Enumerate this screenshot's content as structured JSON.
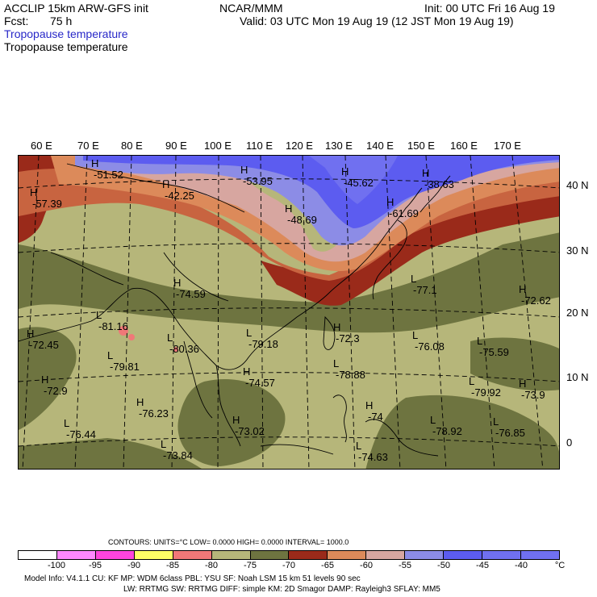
{
  "header": {
    "model": "ACCLIP 15km ARW-GFS init",
    "org": "NCAR/MMM",
    "init": "Init: 00 UTC Fri 16 Aug 19",
    "fcst_label": "Fcst:",
    "fcst_value": "75 h",
    "valid": "Valid: 03 UTC Mon 19 Aug 19 (12 JST Mon 19 Aug 19)",
    "field_colored": "Tropopause temperature",
    "field_black": "Tropopause temperature"
  },
  "map": {
    "lon_labels": [
      "60 E",
      "70 E",
      "80 E",
      "90 E",
      "100 E",
      "110 E",
      "120 E",
      "130 E",
      "140 E",
      "150 E",
      "160 E",
      "170 E"
    ],
    "lat_labels": [
      "40 N",
      "30 N",
      "20 N",
      "10 N",
      "0"
    ],
    "colors": {
      "c_gt40": "#7070f0",
      "c_m40_45": "#5c5cf0",
      "c_m45_50": "#8c8ce6",
      "c_m50_55": "#d7a6a0",
      "c_m55_60": "#dc8a5a",
      "c_m60_65": "#c86440",
      "c_m65_70": "#9a2a1a",
      "c_m70_75": "#6e7440",
      "c_m75_80": "#b6b67a",
      "c_m80_85": "#f07878",
      "c_m85_90": "#ffff66"
    },
    "features": [
      {
        "kind": "H",
        "value": "-51.52"
      },
      {
        "kind": "H",
        "value": "-53.95"
      },
      {
        "kind": "H",
        "value": "-42.25"
      },
      {
        "kind": "H",
        "value": "-45.62"
      },
      {
        "kind": "H",
        "value": "-38.63"
      },
      {
        "kind": "H",
        "value": "-57.39"
      },
      {
        "kind": "H",
        "value": "-48.69"
      },
      {
        "kind": "H",
        "value": "-61.69"
      },
      {
        "kind": "H",
        "value": "-74.59"
      },
      {
        "kind": "L",
        "value": "-81.16"
      },
      {
        "kind": "L",
        "value": "-77.1"
      },
      {
        "kind": "H",
        "value": "-72.62"
      },
      {
        "kind": "H",
        "value": "-72.45"
      },
      {
        "kind": "L",
        "value": "-80.36"
      },
      {
        "kind": "L",
        "value": "-79.18"
      },
      {
        "kind": "H",
        "value": "-72.3"
      },
      {
        "kind": "L",
        "value": "-76.08"
      },
      {
        "kind": "L",
        "value": "-75.59"
      },
      {
        "kind": "L",
        "value": "-79.81"
      },
      {
        "kind": "H",
        "value": "-74.57"
      },
      {
        "kind": "L",
        "value": "-78.88"
      },
      {
        "kind": "H",
        "value": "-72.9"
      },
      {
        "kind": "L",
        "value": "-79.92"
      },
      {
        "kind": "H",
        "value": "-73.9"
      },
      {
        "kind": "H",
        "value": "-76.23"
      },
      {
        "kind": "H",
        "value": "-74"
      },
      {
        "kind": "L",
        "value": "-76.44"
      },
      {
        "kind": "H",
        "value": "-73.02"
      },
      {
        "kind": "L",
        "value": "-78.92"
      },
      {
        "kind": "L",
        "value": "-76.85"
      },
      {
        "kind": "L",
        "value": "-73.84"
      },
      {
        "kind": "L",
        "value": "-74.63"
      }
    ]
  },
  "legend": {
    "contours": "CONTOURS:  UNITS=°C  LOW=  0.0000       HIGH=  0.0000       INTERVAL=   1000.0",
    "swatches": [
      "#ffffff",
      "#ff88ff",
      "#ff44dd",
      "#ffff66",
      "#f07878",
      "#b6b67a",
      "#6e7440",
      "#9a2a1a",
      "#dc8a5a",
      "#d7a6a0",
      "#8c8ce6",
      "#5c5cf0",
      "#7070f0",
      "#7070f0"
    ],
    "ticks": [
      "-100",
      "-95",
      "-90",
      "-85",
      "-80",
      "-75",
      "-70",
      "-65",
      "-60",
      "-55",
      "-50",
      "-45",
      "-40",
      "°C"
    ]
  },
  "footer": {
    "line1": "Model Info: V4.1.1     CU: KF       MP: WDM 6class   PBL: YSU         SF: Noah LSM      15 km    51 levels    90 sec",
    "line2": "LW: RRTMG    SW: RRTMG   DIFF: simple KM: 2D Smagor DAMP: Rayleigh3  SFLAY: MM5"
  }
}
